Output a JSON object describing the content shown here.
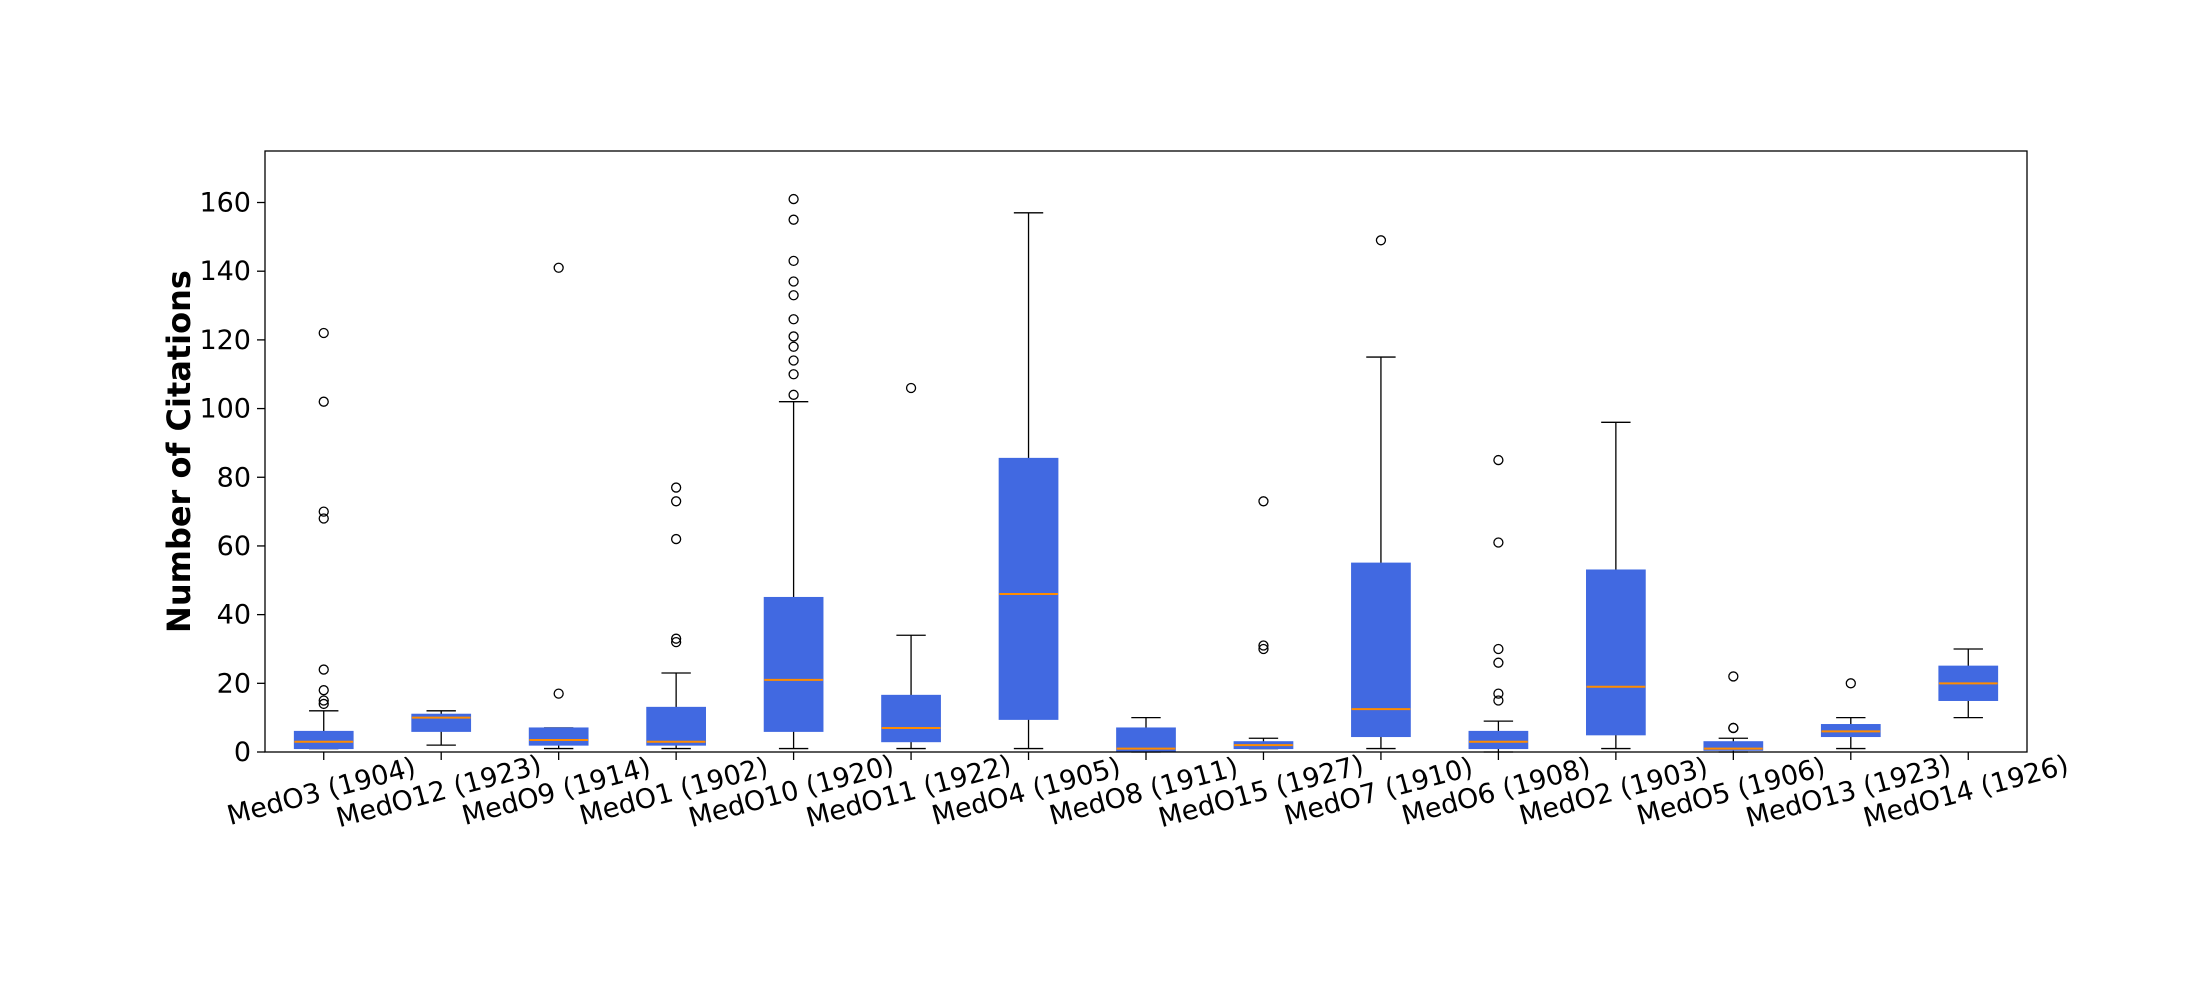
{
  "chart_data": {
    "type": "box",
    "title": "",
    "xlabel": "",
    "ylabel": "Number of Citations",
    "ylim": [
      0,
      175
    ],
    "yticks": [
      0,
      20,
      40,
      60,
      80,
      100,
      120,
      140,
      160
    ],
    "grid": false,
    "colors": {
      "box": "#4169e1",
      "median": "#ff8c00",
      "whisker": "#000000",
      "outlier": "#000000"
    },
    "categories": [
      "MedO3 (1904)",
      "MedO12 (1923)",
      "MedO9 (1914)",
      "MedO1 (1902)",
      "MedO10 (1920)",
      "MedO11 (1922)",
      "MedO4 (1905)",
      "MedO8 (1911)",
      "MedO15 (1927)",
      "MedO7 (1910)",
      "MedO6 (1908)",
      "MedO2 (1903)",
      "MedO5 (1906)",
      "MedO13 (1923)",
      "MedO14 (1926)"
    ],
    "boxes": [
      {
        "whislo": 1,
        "q1": 1,
        "median": 3,
        "q3": 6,
        "whishi": 12,
        "fliers": [
          122,
          102,
          70,
          68,
          24,
          18,
          15,
          14
        ]
      },
      {
        "whislo": 2,
        "q1": 6,
        "median": 10,
        "q3": 11,
        "whishi": 12,
        "fliers": []
      },
      {
        "whislo": 1,
        "q1": 2,
        "median": 3.5,
        "q3": 7,
        "whishi": 7,
        "fliers": [
          141,
          17
        ]
      },
      {
        "whislo": 1,
        "q1": 2,
        "median": 3,
        "q3": 13,
        "whishi": 23,
        "fliers": [
          77,
          73,
          62,
          33,
          32
        ]
      },
      {
        "whislo": 1,
        "q1": 6,
        "median": 21,
        "q3": 45,
        "whishi": 102,
        "fliers": [
          161,
          155,
          143,
          137,
          133,
          126,
          121,
          118,
          114,
          110,
          104
        ]
      },
      {
        "whislo": 1,
        "q1": 3,
        "median": 7,
        "q3": 16.5,
        "whishi": 34,
        "fliers": [
          106
        ]
      },
      {
        "whislo": 1,
        "q1": 9.5,
        "median": 46,
        "q3": 85.5,
        "whishi": 157,
        "fliers": []
      },
      {
        "whislo": 0,
        "q1": 0,
        "median": 1,
        "q3": 7,
        "whishi": 10,
        "fliers": []
      },
      {
        "whislo": 1,
        "q1": 1,
        "median": 2,
        "q3": 3,
        "whishi": 4,
        "fliers": [
          73,
          31,
          30
        ]
      },
      {
        "whislo": 1,
        "q1": 4.5,
        "median": 12.5,
        "q3": 55,
        "whishi": 115,
        "fliers": [
          149
        ]
      },
      {
        "whislo": 0,
        "q1": 1,
        "median": 3,
        "q3": 6,
        "whishi": 9,
        "fliers": [
          85,
          61,
          30,
          26,
          17,
          15
        ]
      },
      {
        "whislo": 1,
        "q1": 5,
        "median": 19,
        "q3": 53,
        "whishi": 96,
        "fliers": []
      },
      {
        "whislo": 0,
        "q1": 0.5,
        "median": 1,
        "q3": 3,
        "whishi": 4,
        "fliers": [
          22,
          7,
          7
        ]
      },
      {
        "whislo": 1,
        "q1": 4.5,
        "median": 6,
        "q3": 8,
        "whishi": 10,
        "fliers": [
          20
        ]
      },
      {
        "whislo": 10,
        "q1": 15,
        "median": 20,
        "q3": 25,
        "whishi": 30,
        "fliers": []
      }
    ]
  }
}
